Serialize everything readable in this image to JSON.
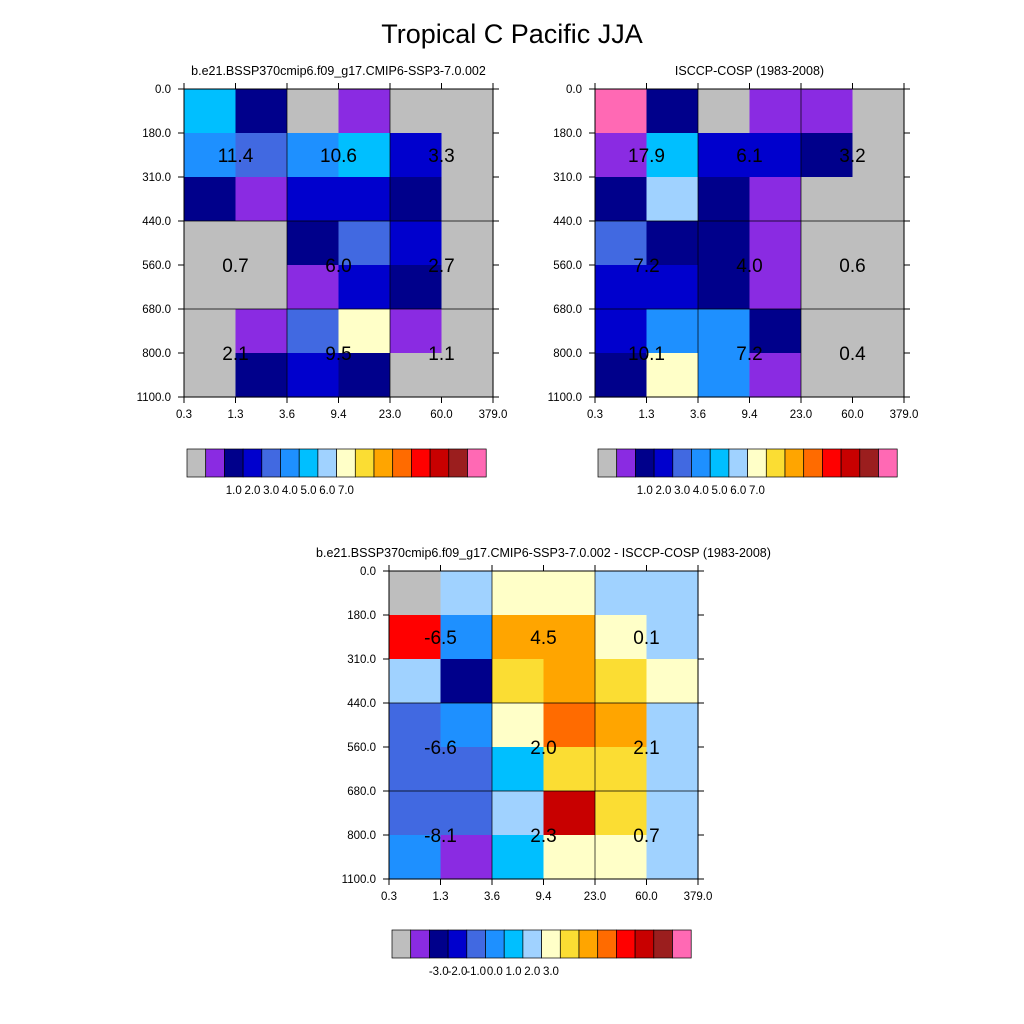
{
  "title": "Tropical C Pacific JJA",
  "x_ticks": [
    "0.3",
    "1.3",
    "3.6",
    "9.4",
    "23.0",
    "60.0",
    "379.0"
  ],
  "y_ticks": [
    "0.0",
    "180.0",
    "310.0",
    "440.0",
    "560.0",
    "680.0",
    "800.0",
    "1100.0"
  ],
  "chart_data": [
    {
      "type": "heatmap",
      "title": "b.e21.BSSP370cmip6.f09_g17.CMIP6-SSP3-7.0.002",
      "missing_color": "#bebebe",
      "colorbar": {
        "colors": [
          "#bebebe",
          "#8a2be2",
          "#00008b",
          "#0000cd",
          "#4169e1",
          "#1e90ff",
          "#00bfff",
          "#a0d2ff",
          "#ffffc8",
          "#fbdd33",
          "#ffa500",
          "#ff6b00",
          "#ff0000",
          "#c80000",
          "#9b1e1e",
          "#ff69b4"
        ],
        "labels": [
          "1.0",
          "2.0",
          "3.0",
          "4.0",
          "5.0",
          "6.0",
          "7.0"
        ]
      },
      "cells": [
        [
          6,
          2,
          0,
          1,
          0,
          0
        ],
        [
          5,
          4,
          5,
          6,
          3,
          0
        ],
        [
          2,
          1,
          3,
          3,
          2,
          0
        ],
        [
          0,
          0,
          2,
          4,
          3,
          0
        ],
        [
          0,
          0,
          1,
          3,
          2,
          0
        ],
        [
          0,
          1,
          4,
          8,
          1,
          0
        ],
        [
          0,
          2,
          3,
          2,
          0,
          0
        ]
      ],
      "annotations": [
        {
          "col": 1,
          "row": 1.5,
          "text": "11.4"
        },
        {
          "col": 3,
          "row": 1.5,
          "text": "10.6"
        },
        {
          "col": 5,
          "row": 1.5,
          "text": "3.3"
        },
        {
          "col": 1,
          "row": 4,
          "text": "0.7"
        },
        {
          "col": 3,
          "row": 4,
          "text": "6.0"
        },
        {
          "col": 5,
          "row": 4,
          "text": "2.7"
        },
        {
          "col": 1,
          "row": 6,
          "text": "2.1"
        },
        {
          "col": 3,
          "row": 6,
          "text": "9.5"
        },
        {
          "col": 5,
          "row": 6,
          "text": "1.1"
        }
      ]
    },
    {
      "type": "heatmap",
      "title": "ISCCP-COSP (1983-2008)",
      "missing_color": "#bebebe",
      "colorbar": {
        "colors": [
          "#bebebe",
          "#8a2be2",
          "#00008b",
          "#0000cd",
          "#4169e1",
          "#1e90ff",
          "#00bfff",
          "#a0d2ff",
          "#ffffc8",
          "#fbdd33",
          "#ffa500",
          "#ff6b00",
          "#ff0000",
          "#c80000",
          "#9b1e1e",
          "#ff69b4"
        ],
        "labels": [
          "1.0",
          "2.0",
          "3.0",
          "4.0",
          "5.0",
          "6.0",
          "7.0"
        ]
      },
      "cells": [
        [
          15,
          2,
          0,
          1,
          1,
          0
        ],
        [
          1,
          6,
          3,
          3,
          2,
          0
        ],
        [
          2,
          7,
          2,
          1,
          0,
          0
        ],
        [
          4,
          2,
          2,
          1,
          0,
          0
        ],
        [
          3,
          3,
          2,
          1,
          0,
          0
        ],
        [
          3,
          5,
          5,
          2,
          0,
          0
        ],
        [
          2,
          8,
          5,
          1,
          0,
          0
        ]
      ],
      "annotations": [
        {
          "col": 1,
          "row": 1.5,
          "text": "17.9"
        },
        {
          "col": 3,
          "row": 1.5,
          "text": "6.1"
        },
        {
          "col": 5,
          "row": 1.5,
          "text": "3.2"
        },
        {
          "col": 1,
          "row": 4,
          "text": "7.2"
        },
        {
          "col": 3,
          "row": 4,
          "text": "4.0"
        },
        {
          "col": 5,
          "row": 4,
          "text": "0.6"
        },
        {
          "col": 1,
          "row": 6,
          "text": "10.1"
        },
        {
          "col": 3,
          "row": 6,
          "text": "7.2"
        },
        {
          "col": 5,
          "row": 6,
          "text": "0.4"
        }
      ]
    },
    {
      "type": "heatmap",
      "title": "b.e21.BSSP370cmip6.f09_g17.CMIP6-SSP3-7.0.002 - ISCCP-COSP (1983-2008)",
      "missing_color": "#bebebe",
      "colorbar": {
        "colors": [
          "#bebebe",
          "#8a2be2",
          "#00008b",
          "#0000cd",
          "#4169e1",
          "#1e90ff",
          "#00bfff",
          "#a0d2ff",
          "#ffffc8",
          "#fbdd33",
          "#ffa500",
          "#ff6b00",
          "#ff0000",
          "#c80000",
          "#9b1e1e",
          "#ff69b4"
        ],
        "labels": [
          "-3.0",
          "-2.0",
          "-1.0",
          "0.0",
          "1.0",
          "2.0",
          "3.0"
        ]
      },
      "cells": [
        [
          0,
          7,
          8,
          8,
          7,
          7
        ],
        [
          12,
          5,
          10,
          10,
          8,
          7
        ],
        [
          7,
          2,
          9,
          10,
          9,
          8
        ],
        [
          4,
          5,
          8,
          11,
          10,
          7
        ],
        [
          4,
          4,
          6,
          9,
          9,
          7
        ],
        [
          4,
          4,
          7,
          13,
          9,
          7
        ],
        [
          5,
          1,
          6,
          8,
          8,
          7
        ]
      ],
      "annotations": [
        {
          "col": 1,
          "row": 1.5,
          "text": "-6.5"
        },
        {
          "col": 3,
          "row": 1.5,
          "text": "4.5"
        },
        {
          "col": 5,
          "row": 1.5,
          "text": "0.1"
        },
        {
          "col": 1,
          "row": 4,
          "text": "-6.6"
        },
        {
          "col": 3,
          "row": 4,
          "text": "2.0"
        },
        {
          "col": 5,
          "row": 4,
          "text": "2.1"
        },
        {
          "col": 1,
          "row": 6,
          "text": "-8.1"
        },
        {
          "col": 3,
          "row": 6,
          "text": "2.3"
        },
        {
          "col": 5,
          "row": 6,
          "text": "0.7"
        }
      ]
    }
  ]
}
